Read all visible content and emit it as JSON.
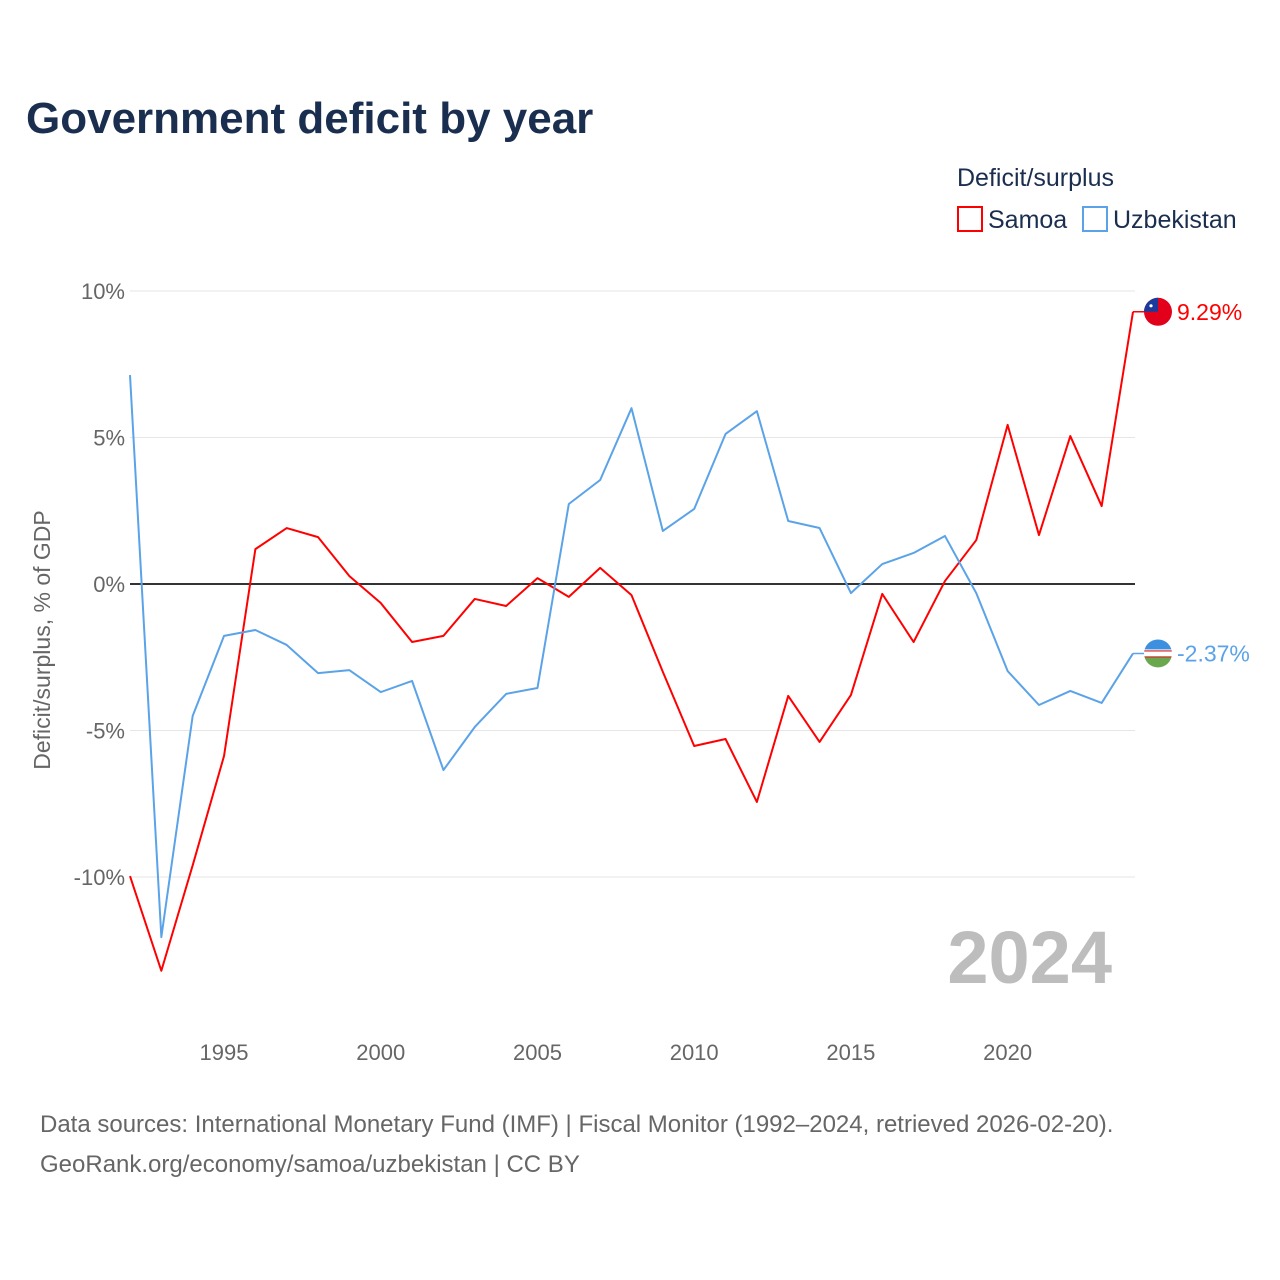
{
  "title": "Government deficit by year",
  "source_line1": "Data sources: International Monetary Fund (IMF) | Fiscal Monitor (1992–2024, retrieved 2026-02-20).",
  "source_line2": "GeoRank.org/economy/samoa/uzbekistan | CC BY",
  "chart_data": {
    "type": "line",
    "title": "Government deficit by year",
    "xlabel": "",
    "ylabel": "Deficit/surplus, % of GDP",
    "legend_title": "Deficit/surplus",
    "legend_position": "top-right",
    "xlim": [
      1992,
      2024
    ],
    "ylim": [
      -14,
      10.5
    ],
    "grid": true,
    "current_year_label": "2024",
    "x_ticks": [
      1995,
      2000,
      2005,
      2010,
      2015,
      2020
    ],
    "x_tick_labels": [
      "1995",
      "2000",
      "2005",
      "2010",
      "2015",
      "2020"
    ],
    "y_ticks": [
      10,
      5,
      0,
      -5,
      -10
    ],
    "y_tick_labels": [
      "10%",
      "5%",
      "0%",
      "-5%",
      "-10%"
    ],
    "x": [
      1992,
      1993,
      1994,
      1995,
      1996,
      1997,
      1998,
      1999,
      2000,
      2001,
      2002,
      2003,
      2004,
      2005,
      2006,
      2007,
      2008,
      2009,
      2010,
      2011,
      2012,
      2013,
      2014,
      2015,
      2016,
      2017,
      2018,
      2019,
      2020,
      2021,
      2022,
      2023,
      2024
    ],
    "series": [
      {
        "name": "Samoa",
        "color": "#ff0000",
        "end_label": "9.29%",
        "flag": "samoa-flag",
        "values": [
          -9.97,
          -13.2,
          -9.6,
          -5.87,
          1.19,
          1.91,
          1.6,
          0.27,
          -0.65,
          -1.98,
          -1.77,
          -0.51,
          -0.75,
          0.2,
          -0.44,
          0.55,
          -0.38,
          -3.0,
          -5.53,
          -5.29,
          -7.44,
          -3.82,
          -5.39,
          -3.79,
          -0.34,
          -1.98,
          0.1,
          1.5,
          5.43,
          1.67,
          5.05,
          2.66,
          9.29
        ]
      },
      {
        "name": "Uzbekistan",
        "color": "#5ba3e8",
        "end_label": "-2.37%",
        "flag": "uzbekistan-flag",
        "values": [
          7.13,
          -12.05,
          -4.5,
          -1.77,
          -1.57,
          -2.08,
          -3.04,
          -2.94,
          -3.69,
          -3.31,
          -6.35,
          -4.88,
          -3.75,
          -3.55,
          2.73,
          3.55,
          6.0,
          1.81,
          2.56,
          5.12,
          5.9,
          2.15,
          1.91,
          -0.31,
          0.68,
          1.06,
          1.64,
          -0.31,
          -2.97,
          -4.13,
          -3.65,
          -4.06,
          -2.37
        ]
      }
    ]
  }
}
